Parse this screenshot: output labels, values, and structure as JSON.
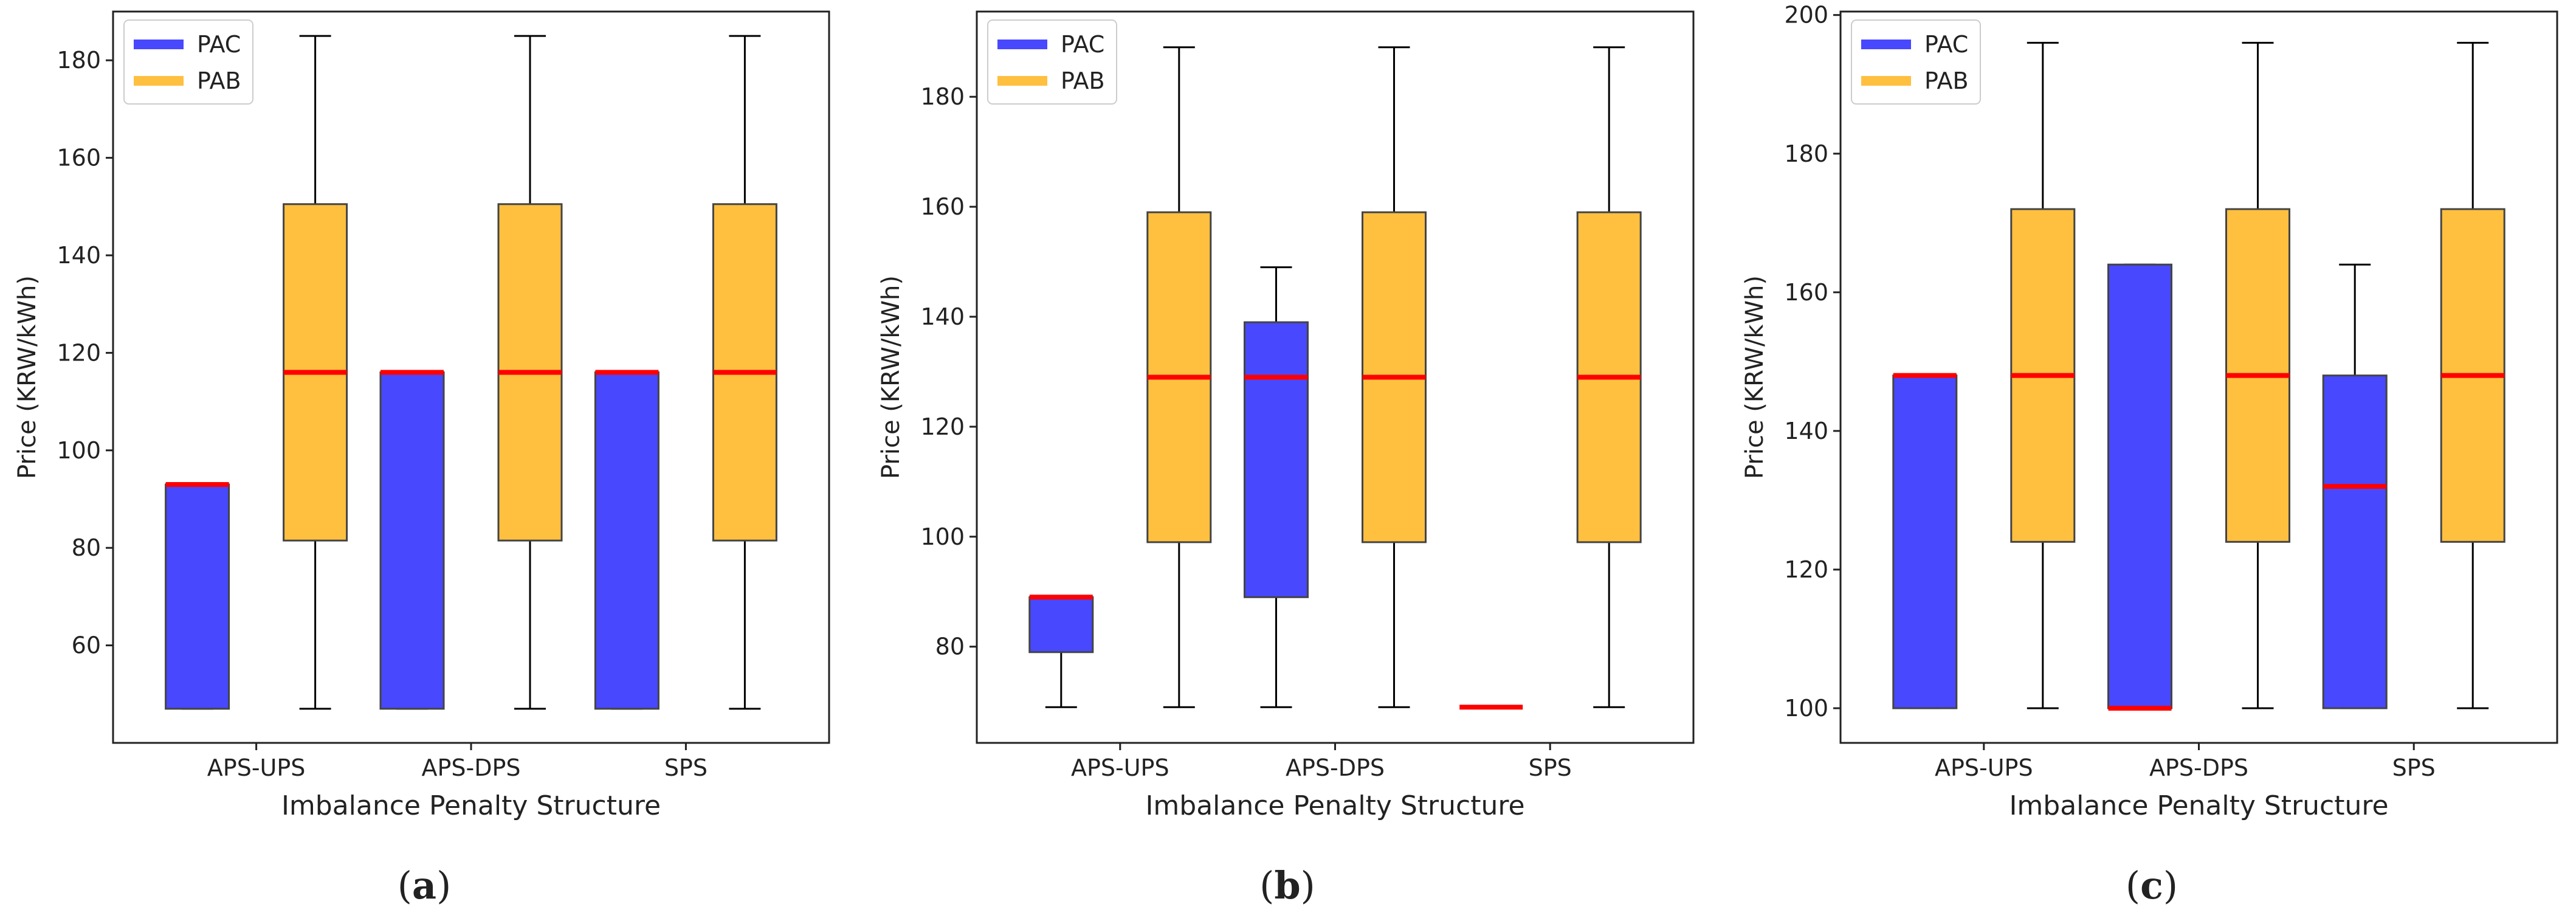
{
  "figure": {
    "description_none": "",
    "colors": {
      "pac": "#4848ff",
      "pab": "#ffc040",
      "median": "#ff0000",
      "box_edge": "#444444",
      "whisker": "#000000"
    }
  },
  "chart_data": [
    {
      "type": "boxplot",
      "caption_letter": "a",
      "xlabel": "Imbalance Penalty Structure",
      "ylabel": "Price (KRW/kWh)",
      "ylim": [
        40,
        190
      ],
      "yticks": [
        60,
        80,
        100,
        120,
        140,
        160,
        180
      ],
      "categories": [
        "APS-UPS",
        "APS-DPS",
        "SPS"
      ],
      "legend": {
        "position": "upper-left",
        "entries": [
          "PAC",
          "PAB"
        ]
      },
      "series": [
        {
          "name": "PAC",
          "boxes": [
            {
              "whislo": 47,
              "q1": 47,
              "med": 93,
              "q3": 93,
              "whishi": 93
            },
            {
              "whislo": 47,
              "q1": 47,
              "med": 116,
              "q3": 116,
              "whishi": 116
            },
            {
              "whislo": 47,
              "q1": 47,
              "med": 116,
              "q3": 116,
              "whishi": 116
            }
          ]
        },
        {
          "name": "PAB",
          "boxes": [
            {
              "whislo": 47,
              "q1": 81.5,
              "med": 116,
              "q3": 150.5,
              "whishi": 185
            },
            {
              "whislo": 47,
              "q1": 81.5,
              "med": 116,
              "q3": 150.5,
              "whishi": 185
            },
            {
              "whislo": 47,
              "q1": 81.5,
              "med": 116,
              "q3": 150.5,
              "whishi": 185
            }
          ]
        }
      ]
    },
    {
      "type": "boxplot",
      "caption_letter": "b",
      "xlabel": "Imbalance Penalty Structure",
      "ylabel": "Price (KRW/kWh)",
      "ylim": [
        62.5,
        195.5
      ],
      "yticks": [
        80,
        100,
        120,
        140,
        160,
        180
      ],
      "categories": [
        "APS-UPS",
        "APS-DPS",
        "SPS"
      ],
      "legend": {
        "position": "upper-left",
        "entries": [
          "PAC",
          "PAB"
        ]
      },
      "series": [
        {
          "name": "PAC",
          "boxes": [
            {
              "whislo": 69,
              "q1": 79,
              "med": 89,
              "q3": 89,
              "whishi": 89
            },
            {
              "whislo": 69,
              "q1": 89,
              "med": 129,
              "q3": 139,
              "whishi": 149
            },
            {
              "whislo": 69,
              "q1": 69,
              "med": 69,
              "q3": 69,
              "whishi": 69
            }
          ]
        },
        {
          "name": "PAB",
          "boxes": [
            {
              "whislo": 69,
              "q1": 99,
              "med": 129,
              "q3": 159,
              "whishi": 189
            },
            {
              "whislo": 69,
              "q1": 99,
              "med": 129,
              "q3": 159,
              "whishi": 189
            },
            {
              "whislo": 69,
              "q1": 99,
              "med": 129,
              "q3": 159,
              "whishi": 189
            }
          ]
        }
      ]
    },
    {
      "type": "boxplot",
      "caption_letter": "c",
      "xlabel": "Imbalance Penalty Structure",
      "ylabel": "Price (KRW/kWh)",
      "ylim": [
        95,
        200.5
      ],
      "yticks": [
        100,
        120,
        140,
        160,
        180,
        200
      ],
      "categories": [
        "APS-UPS",
        "APS-DPS",
        "SPS"
      ],
      "legend": {
        "position": "upper-left",
        "entries": [
          "PAC",
          "PAB"
        ]
      },
      "series": [
        {
          "name": "PAC",
          "boxes": [
            {
              "whislo": 100,
              "q1": 100,
              "med": 148,
              "q3": 148,
              "whishi": 148
            },
            {
              "whislo": 100,
              "q1": 100,
              "med": 100,
              "q3": 164,
              "whishi": 164
            },
            {
              "whislo": 100,
              "q1": 100,
              "med": 132,
              "q3": 148,
              "whishi": 164
            }
          ]
        },
        {
          "name": "PAB",
          "boxes": [
            {
              "whislo": 100,
              "q1": 124,
              "med": 148,
              "q3": 172,
              "whishi": 196
            },
            {
              "whislo": 100,
              "q1": 124,
              "med": 148,
              "q3": 172,
              "whishi": 196
            },
            {
              "whislo": 100,
              "q1": 124,
              "med": 148,
              "q3": 172,
              "whishi": 196
            }
          ]
        }
      ]
    }
  ]
}
